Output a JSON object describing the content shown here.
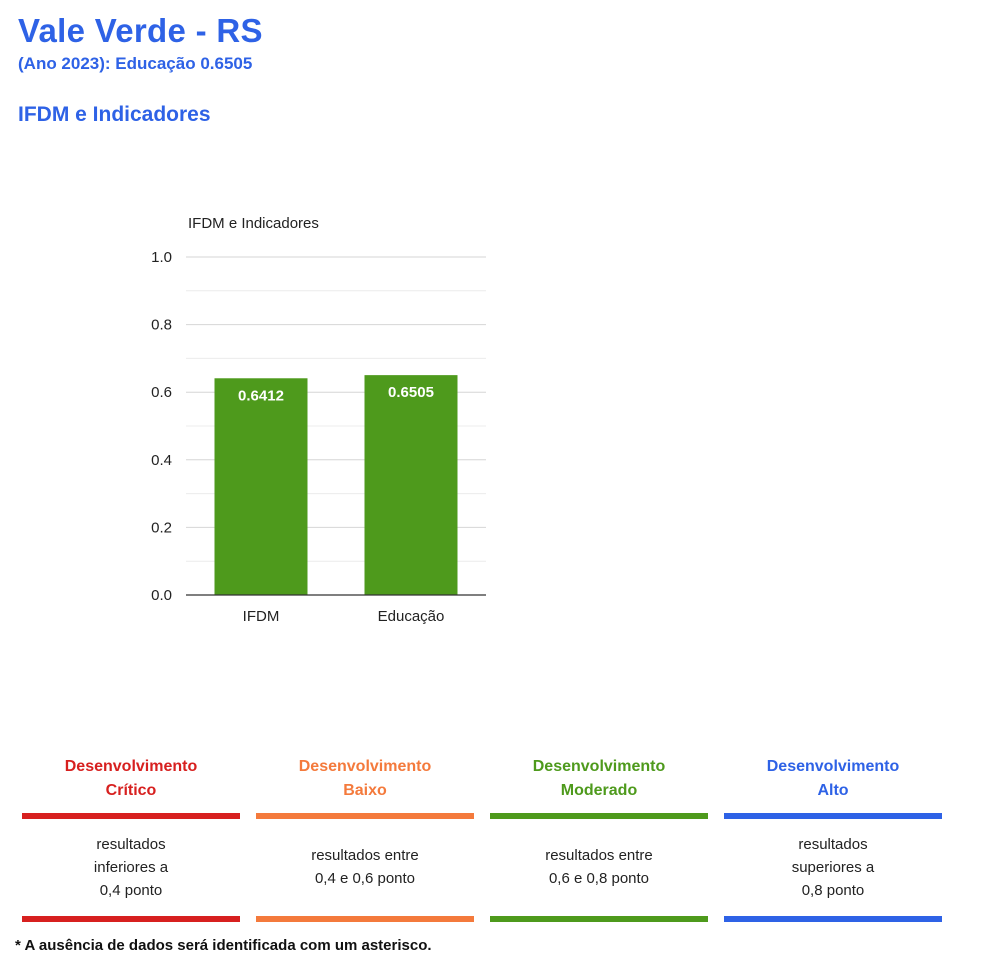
{
  "header": {
    "title": "Vale Verde - RS",
    "subtitle": "(Ano 2023): Educação 0.6505",
    "section_title": "IFDM e Indicadores"
  },
  "chart_data": {
    "type": "bar",
    "title": "IFDM e Indicadores",
    "categories": [
      "IFDM",
      "Educação"
    ],
    "values": [
      0.6412,
      0.6505
    ],
    "value_labels": [
      "0.6412",
      "0.6505"
    ],
    "ylim": [
      0,
      1.0
    ],
    "yticks": [
      "0.0",
      "0.2",
      "0.4",
      "0.6",
      "0.8",
      "1.0"
    ],
    "grid": true,
    "bar_color": "#4e9a1c"
  },
  "legend": [
    {
      "title": "Desenvolvimento\nCrítico",
      "text": "resultados\ninferiores a\n0,4 ponto",
      "color": "#d7201f"
    },
    {
      "title": "Desenvolvimento\nBaixo",
      "text": "resultados entre\n0,4 e 0,6 ponto",
      "color": "#f47a3c"
    },
    {
      "title": "Desenvolvimento\nModerado",
      "text": "resultados entre\n0,6 e 0,8 ponto",
      "color": "#4e9a1c"
    },
    {
      "title": "Desenvolvimento\nAlto",
      "text": "resultados\nsuperiores a\n0,8 ponto",
      "color": "#2e62e6"
    }
  ],
  "footnote": "* A ausência de dados será identificada com um asterisco."
}
